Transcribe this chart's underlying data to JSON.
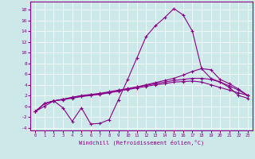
{
  "xlabel": "Windchill (Refroidissement éolien,°C)",
  "background_color": "#cce8e8",
  "line_color": "#880088",
  "xlim": [
    -0.5,
    23.5
  ],
  "ylim": [
    -4.5,
    19.5
  ],
  "xticks": [
    0,
    1,
    2,
    3,
    4,
    5,
    6,
    7,
    8,
    9,
    10,
    11,
    12,
    13,
    14,
    15,
    16,
    17,
    18,
    19,
    20,
    21,
    22,
    23
  ],
  "yticks": [
    -4,
    -2,
    0,
    2,
    4,
    6,
    8,
    10,
    12,
    14,
    16,
    18
  ],
  "x": [
    0,
    1,
    2,
    3,
    4,
    5,
    6,
    7,
    8,
    9,
    10,
    11,
    12,
    13,
    14,
    15,
    16,
    17,
    18,
    19,
    20,
    21,
    22,
    23
  ],
  "line1": [
    -1,
    0,
    1,
    -0.3,
    -2.8,
    -0.3,
    -3.3,
    -3.2,
    -2.5,
    1.2,
    5,
    9,
    13,
    15,
    16.5,
    18.2,
    17,
    14,
    7,
    5.2,
    4.5,
    3.5,
    2.0,
    1.5
  ],
  "line2": [
    -1,
    0.5,
    1.0,
    1.2,
    1.5,
    1.8,
    2.0,
    2.2,
    2.5,
    2.8,
    3.2,
    3.6,
    4.0,
    4.4,
    4.8,
    5.2,
    5.8,
    6.5,
    7.0,
    6.8,
    5.0,
    4.2,
    3.2,
    2.0
  ],
  "line3": [
    -1,
    0.5,
    1.0,
    1.3,
    1.7,
    2.0,
    2.2,
    2.4,
    2.7,
    3.0,
    3.3,
    3.6,
    3.9,
    4.2,
    4.5,
    4.8,
    5.0,
    5.2,
    5.2,
    5.0,
    4.5,
    3.8,
    3.0,
    2.0
  ],
  "line4": [
    -1,
    0.5,
    1.0,
    1.3,
    1.6,
    1.9,
    2.1,
    2.3,
    2.6,
    2.9,
    3.1,
    3.4,
    3.7,
    4.0,
    4.2,
    4.5,
    4.6,
    4.7,
    4.5,
    4.0,
    3.5,
    3.0,
    2.5,
    2.0
  ]
}
